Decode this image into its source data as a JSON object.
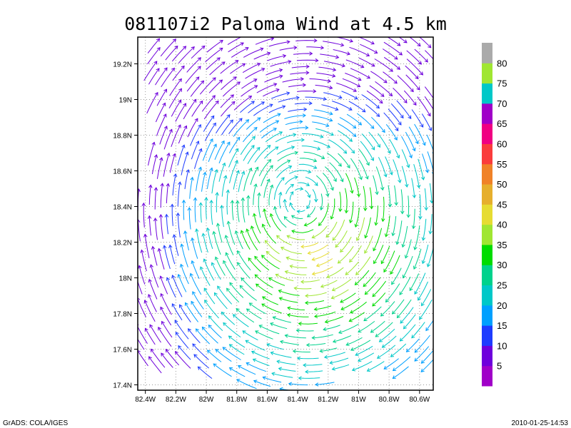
{
  "chart_data": {
    "type": "streamline",
    "title": "081107i2 Paloma Wind at 4.5 km",
    "x_ticks": [
      {
        "value": -82.4,
        "label": "82.4W"
      },
      {
        "value": -82.2,
        "label": "82.2W"
      },
      {
        "value": -82.0,
        "label": "82W"
      },
      {
        "value": -81.8,
        "label": "81.8W"
      },
      {
        "value": -81.6,
        "label": "81.6W"
      },
      {
        "value": -81.4,
        "label": "81.4W"
      },
      {
        "value": -81.2,
        "label": "81.2W"
      },
      {
        "value": -81.0,
        "label": "81W"
      },
      {
        "value": -80.8,
        "label": "80.8W"
      },
      {
        "value": -80.6,
        "label": "80.6W"
      }
    ],
    "y_ticks": [
      {
        "value": 17.4,
        "label": "17.4N"
      },
      {
        "value": 17.6,
        "label": "17.6N"
      },
      {
        "value": 17.8,
        "label": "17.8N"
      },
      {
        "value": 18.0,
        "label": "18N"
      },
      {
        "value": 18.2,
        "label": "18.2N"
      },
      {
        "value": 18.4,
        "label": "18.4N"
      },
      {
        "value": 18.6,
        "label": "18.6N"
      },
      {
        "value": 18.8,
        "label": "18.8N"
      },
      {
        "value": 19.0,
        "label": "19N"
      },
      {
        "value": 19.2,
        "label": "19.2N"
      }
    ],
    "xlim": [
      -82.45,
      -80.51
    ],
    "ylim": [
      17.37,
      19.35
    ],
    "grid": true,
    "grid_style": "dotted",
    "storm_center": {
      "lon": -81.39,
      "lat": 18.44
    },
    "max_wind_region": {
      "lon": -81.25,
      "lat": 18.15
    },
    "colorbar": {
      "placement": "right",
      "colors": [
        "#a000c8",
        "#6e00dc",
        "#1e3cff",
        "#00a0ff",
        "#00c8c8",
        "#00d28c",
        "#00dc00",
        "#a0e632",
        "#e6dc32",
        "#e6af2d",
        "#f08228",
        "#fa3c3c",
        "#f00082",
        "#a000c8",
        "#00c8c8",
        "#a0e632",
        "#aaaaaa"
      ],
      "labels": [
        "5",
        "10",
        "15",
        "20",
        "25",
        "30",
        "35",
        "40",
        "45",
        "50",
        "55",
        "60",
        "65",
        "70",
        "75",
        "80"
      ]
    },
    "legend_palette": [
      {
        "max": 10,
        "color": "#6e00dc"
      },
      {
        "max": 15,
        "color": "#1e3cff"
      },
      {
        "max": 20,
        "color": "#00a0ff"
      },
      {
        "max": 25,
        "color": "#00c8c8"
      },
      {
        "max": 30,
        "color": "#00d28c"
      },
      {
        "max": 35,
        "color": "#00dc00"
      },
      {
        "max": 40,
        "color": "#a0e632"
      },
      {
        "max": 45,
        "color": "#e6dc32"
      }
    ]
  },
  "footer": {
    "left": "GrADS: COLA/IGES",
    "right": "2010-01-25-14:53"
  }
}
